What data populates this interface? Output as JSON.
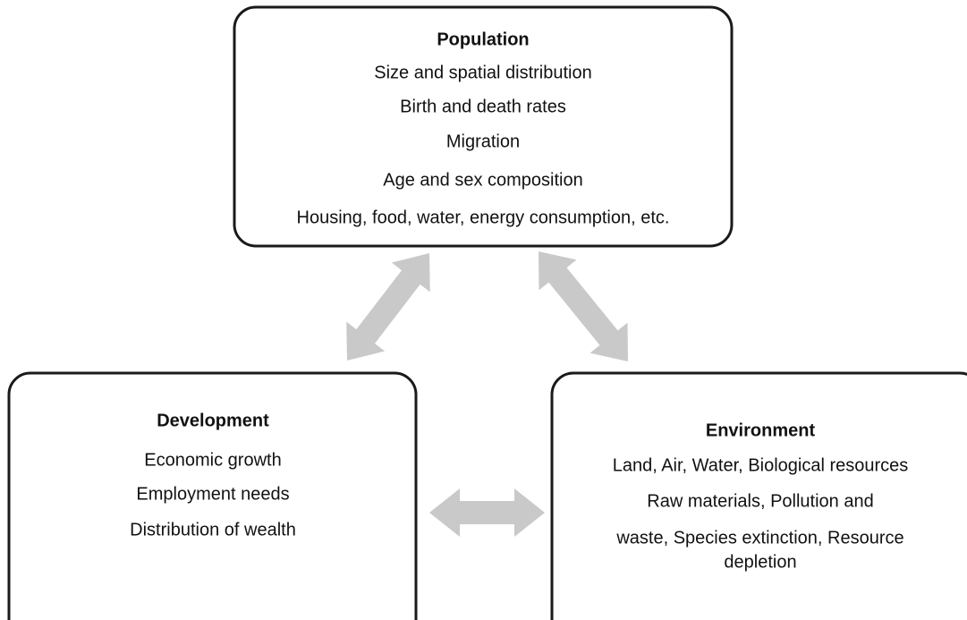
{
  "nodes": [
    {
      "title": "Population",
      "items": [
        "Size and spatial distribution",
        "Birth and death rates",
        "Migration",
        "Age and sex composition",
        "Housing, food, water, energy consumption, etc."
      ]
    },
    {
      "title": "Development",
      "items": [
        "Economic growth",
        "Employment needs",
        "Distribution of wealth"
      ]
    },
    {
      "title": "Environment",
      "items": [
        "Land, Air, Water, Biological resources",
        "Raw materials, Pollution and",
        "waste, Species extinction, Resource",
        "depletion"
      ]
    }
  ]
}
